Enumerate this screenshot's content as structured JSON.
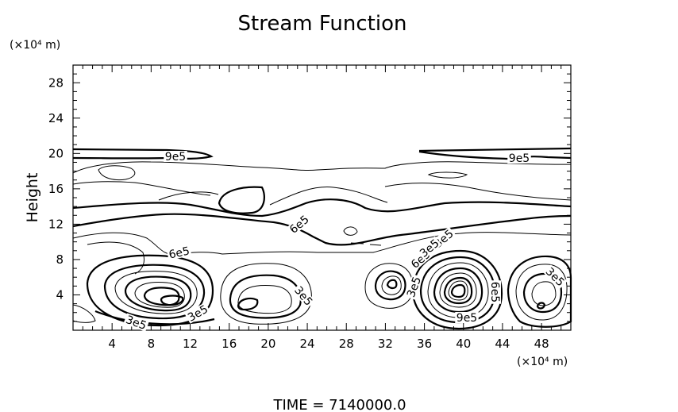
{
  "chart_data": {
    "type": "contour",
    "title": "Stream Function",
    "xlabel": "",
    "ylabel": "Height",
    "x_unit": "(×10⁴ m)",
    "y_unit": "(×10⁴ m)",
    "xlim": [
      0,
      51
    ],
    "ylim": [
      0,
      30
    ],
    "xticks": [
      4,
      8,
      12,
      16,
      20,
      24,
      28,
      32,
      36,
      40,
      44,
      48
    ],
    "yticks": [
      4,
      8,
      12,
      16,
      20,
      24,
      28
    ],
    "grid": false,
    "contour_labels": [
      "9e5",
      "9e5",
      "6e5",
      "6e5",
      "6e5",
      "3e5",
      "3e5",
      "3e5",
      "3e5",
      "3e5",
      "3e5",
      "9e5",
      "6e5",
      "3e5"
    ],
    "footer": "TIME  =  7140000.0"
  }
}
